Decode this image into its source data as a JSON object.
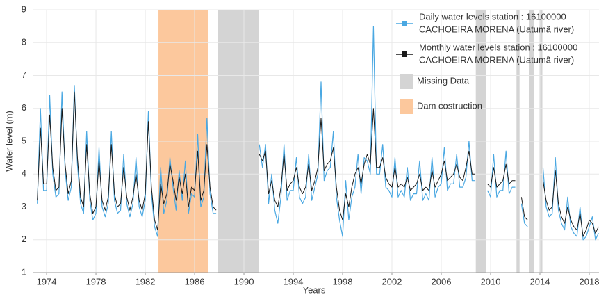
{
  "chart_data": {
    "type": "line",
    "x_label": "Years",
    "y_label": "Water level (m)",
    "xlim": [
      1972.87,
      2018.79
    ],
    "ylim": [
      1,
      9
    ],
    "xticks": [
      1974,
      1978,
      1982,
      1986,
      1990,
      1994,
      1998,
      2002,
      2006,
      2010,
      2014,
      2018
    ],
    "yticks": [
      1,
      2,
      3,
      4,
      5,
      6,
      7,
      8,
      9
    ],
    "grid": true,
    "shaded_regions": [
      {
        "name": "Missing Data",
        "color": "#d4d4d4",
        "ranges": [
          [
            1987.86,
            1991.2
          ],
          [
            2008.8,
            2009.65
          ],
          [
            2012.1,
            2012.35
          ],
          [
            2013.1,
            2013.5
          ],
          [
            2013.96,
            2014.2
          ]
        ]
      },
      {
        "name": "Dam costruction",
        "color": "#fcc89d",
        "ranges": [
          [
            1983.07,
            1987.07
          ]
        ]
      }
    ],
    "x": [
      1973.25,
      1973.5,
      1973.75,
      1974,
      1974.25,
      1974.5,
      1974.75,
      1975,
      1975.25,
      1975.5,
      1975.75,
      1976,
      1976.25,
      1976.5,
      1976.75,
      1977,
      1977.25,
      1977.5,
      1977.75,
      1978,
      1978.25,
      1978.5,
      1978.75,
      1979,
      1979.25,
      1979.5,
      1979.75,
      1980,
      1980.25,
      1980.5,
      1980.75,
      1981,
      1981.25,
      1981.5,
      1981.75,
      1982,
      1982.25,
      1982.5,
      1982.75,
      1983,
      1983.25,
      1983.5,
      1983.75,
      1984,
      1984.25,
      1984.5,
      1984.75,
      1985,
      1985.25,
      1985.5,
      1985.75,
      1986,
      1986.25,
      1986.5,
      1986.75,
      1987,
      1987.25,
      1987.5,
      1987.75,
      1989.5,
      1991.25,
      1991.5,
      1991.75,
      1992,
      1992.25,
      1992.5,
      1992.75,
      1993,
      1993.25,
      1993.5,
      1993.75,
      1994,
      1994.25,
      1994.5,
      1994.75,
      1995,
      1995.25,
      1995.5,
      1995.75,
      1996,
      1996.25,
      1996.5,
      1996.75,
      1997,
      1997.25,
      1997.5,
      1997.75,
      1998,
      1998.25,
      1998.5,
      1998.75,
      1999,
      1999.25,
      1999.5,
      1999.75,
      2000,
      2000.25,
      2000.5,
      2000.75,
      2001,
      2001.25,
      2001.5,
      2001.75,
      2002,
      2002.25,
      2002.5,
      2002.75,
      2003,
      2003.25,
      2003.5,
      2003.75,
      2004,
      2004.25,
      2004.5,
      2004.75,
      2005,
      2005.25,
      2005.5,
      2005.75,
      2006,
      2006.25,
      2006.5,
      2006.75,
      2007,
      2007.25,
      2007.5,
      2007.75,
      2008,
      2008.25,
      2008.5,
      2008.75,
      2009.25,
      2009.75,
      2010,
      2010.25,
      2010.5,
      2010.75,
      2011,
      2011.25,
      2011.5,
      2011.75,
      2012,
      2012.25,
      2012.5,
      2012.75,
      2013,
      2013.25,
      2013.75,
      2014,
      2014.25,
      2014.5,
      2014.75,
      2015,
      2015.25,
      2015.5,
      2015.75,
      2016,
      2016.25,
      2016.5,
      2016.75,
      2017,
      2017.25,
      2017.5,
      2017.75,
      2018,
      2018.25,
      2018.5,
      2018.75
    ],
    "series": [
      {
        "name": [
          "Daily water levels station : 16100000",
          "CACHOEIRA MORENA (Uatumã river)"
        ],
        "color": "#4aa8e2",
        "values": [
          3.1,
          6.0,
          3.5,
          3.5,
          6.4,
          4.0,
          3.3,
          3.4,
          6.5,
          4.1,
          3.2,
          3.6,
          6.7,
          4.3,
          3.1,
          2.8,
          5.3,
          3.2,
          2.6,
          2.8,
          4.8,
          3.0,
          2.7,
          3.1,
          5.3,
          3.2,
          2.8,
          2.9,
          4.6,
          3.1,
          2.7,
          3.1,
          4.5,
          3.0,
          2.7,
          3.2,
          5.9,
          3.4,
          2.4,
          2.1,
          4.2,
          2.8,
          3.2,
          4.5,
          3.6,
          2.9,
          4.1,
          3.2,
          4.4,
          2.8,
          3.4,
          3.3,
          5.2,
          3.0,
          3.3,
          5.7,
          3.4,
          2.8,
          2.8,
          null,
          4.9,
          4.2,
          4.9,
          3.1,
          4.0,
          2.9,
          2.5,
          3.3,
          4.9,
          3.2,
          3.5,
          3.5,
          4.5,
          3.3,
          3.1,
          3.3,
          4.6,
          3.2,
          3.6,
          4.0,
          6.8,
          3.8,
          4.1,
          4.2,
          5.3,
          3.3,
          2.6,
          2.1,
          3.8,
          2.6,
          3.3,
          3.6,
          4.6,
          3.4,
          4.5,
          4.4,
          4.0,
          8.5,
          4.0,
          4.0,
          4.9,
          3.6,
          3.5,
          3.3,
          4.5,
          3.3,
          3.5,
          3.3,
          4.2,
          3.2,
          3.4,
          3.4,
          4.4,
          3.2,
          3.4,
          3.2,
          4.5,
          3.3,
          3.6,
          3.7,
          4.8,
          3.5,
          3.7,
          3.7,
          4.6,
          3.6,
          3.6,
          3.9,
          5.0,
          3.8,
          3.8,
          null,
          3.5,
          3.3,
          4.6,
          3.3,
          3.5,
          3.5,
          4.7,
          3.4,
          3.6,
          3.6,
          null,
          3.1,
          2.5,
          2.4,
          null,
          2.6,
          null,
          4.2,
          3.0,
          2.7,
          2.8,
          4.5,
          2.9,
          2.5,
          2.3,
          3.3,
          2.4,
          2.2,
          2.1,
          3.0,
          2.0,
          2.1,
          2.4,
          2.7,
          2.0,
          2.2
        ]
      },
      {
        "name": [
          "Monthly water levels station : 16100000",
          "CACHOEIRA MORENA (Uatumã river)"
        ],
        "color": "#1a1a1a",
        "values": [
          3.2,
          5.4,
          3.7,
          3.7,
          5.8,
          4.2,
          3.5,
          3.6,
          6.0,
          4.3,
          3.4,
          3.8,
          6.5,
          4.5,
          3.3,
          3.0,
          4.9,
          3.4,
          2.8,
          3.0,
          4.4,
          3.2,
          2.9,
          3.3,
          4.9,
          3.4,
          3.0,
          3.1,
          4.2,
          3.3,
          2.9,
          3.3,
          4.0,
          3.2,
          2.9,
          3.4,
          5.6,
          3.6,
          2.6,
          2.3,
          3.7,
          3.1,
          3.4,
          4.3,
          3.8,
          3.2,
          3.9,
          3.4,
          4.0,
          3.0,
          3.6,
          3.5,
          4.7,
          3.2,
          3.5,
          4.9,
          3.6,
          3.0,
          2.9,
          null,
          4.6,
          4.4,
          4.7,
          3.4,
          3.8,
          3.2,
          3.0,
          3.6,
          4.6,
          3.5,
          3.7,
          3.8,
          4.2,
          3.6,
          3.4,
          3.6,
          4.3,
          3.5,
          3.8,
          4.2,
          5.7,
          4.1,
          4.3,
          4.4,
          4.8,
          3.6,
          2.9,
          2.6,
          3.4,
          3.0,
          3.6,
          4.0,
          4.2,
          3.7,
          4.3,
          4.6,
          4.3,
          6.0,
          4.2,
          4.2,
          4.5,
          3.9,
          3.7,
          3.6,
          4.2,
          3.6,
          3.7,
          3.6,
          3.9,
          3.5,
          3.6,
          3.7,
          4.0,
          3.5,
          3.6,
          3.5,
          4.1,
          3.6,
          3.8,
          4.0,
          4.4,
          3.8,
          3.9,
          4.0,
          4.3,
          3.9,
          3.8,
          4.2,
          4.7,
          4.0,
          4.0,
          null,
          3.7,
          3.6,
          4.2,
          3.6,
          3.7,
          3.8,
          4.3,
          3.7,
          3.8,
          3.8,
          null,
          3.3,
          2.7,
          2.6,
          null,
          2.8,
          null,
          3.8,
          3.2,
          2.9,
          3.0,
          4.1,
          3.1,
          2.7,
          2.5,
          3.0,
          2.6,
          2.4,
          2.3,
          2.8,
          2.1,
          2.3,
          2.6,
          2.5,
          2.2,
          2.4
        ]
      }
    ]
  }
}
